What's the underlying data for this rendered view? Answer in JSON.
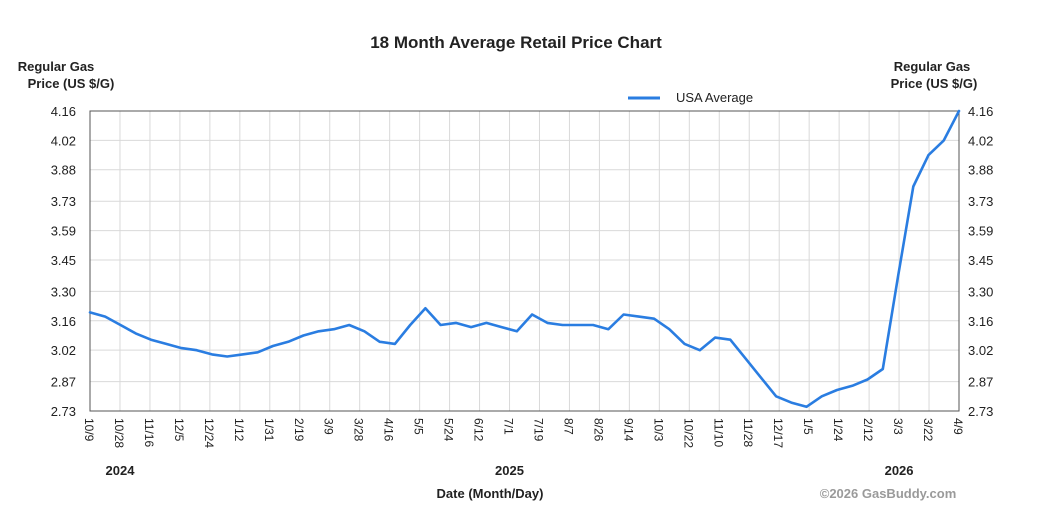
{
  "chart_data": {
    "type": "line",
    "title": "18 Month Average Retail Price Chart",
    "ylabel_left": [
      "Regular Gas",
      "Price (US $/G)"
    ],
    "ylabel_right": [
      "Regular Gas",
      "Price (US $/G)"
    ],
    "xlabel": "Date (Month/Day)",
    "ylim": [
      2.73,
      4.16
    ],
    "y_ticks": [
      "4.16",
      "4.02",
      "3.88",
      "3.73",
      "3.59",
      "3.45",
      "3.30",
      "3.16",
      "3.02",
      "2.87",
      "2.73"
    ],
    "x_ticks": [
      "10/9",
      "10/28",
      "11/16",
      "12/5",
      "12/24",
      "1/12",
      "1/31",
      "2/19",
      "3/9",
      "3/28",
      "4/16",
      "5/5",
      "5/24",
      "6/12",
      "7/1",
      "7/19",
      "8/7",
      "8/26",
      "9/14",
      "10/3",
      "10/22",
      "11/10",
      "11/28",
      "12/17",
      "1/5",
      "1/24",
      "2/12",
      "3/3",
      "3/22",
      "4/9"
    ],
    "years": [
      {
        "label": "2024",
        "at_tick": 1
      },
      {
        "label": "2025",
        "at_tick": 14
      },
      {
        "label": "2026",
        "at_tick": 27
      }
    ],
    "legend": "top-right",
    "series": [
      {
        "name": "USA Average",
        "color": "#2a7de1",
        "values": [
          3.2,
          3.18,
          3.14,
          3.1,
          3.07,
          3.05,
          3.03,
          3.02,
          3.0,
          2.99,
          3.0,
          3.01,
          3.04,
          3.06,
          3.09,
          3.11,
          3.12,
          3.14,
          3.11,
          3.06,
          3.05,
          3.14,
          3.22,
          3.14,
          3.15,
          3.13,
          3.15,
          3.13,
          3.11,
          3.19,
          3.15,
          3.14,
          3.14,
          3.14,
          3.12,
          3.19,
          3.18,
          3.17,
          3.12,
          3.05,
          3.02,
          3.08,
          3.07,
          2.98,
          2.89,
          2.8,
          2.77,
          2.75,
          2.8,
          2.83,
          2.85,
          2.88,
          2.93,
          3.37,
          3.8,
          3.95,
          4.02,
          4.16
        ]
      }
    ]
  },
  "copyright": "©2026 GasBuddy.com"
}
